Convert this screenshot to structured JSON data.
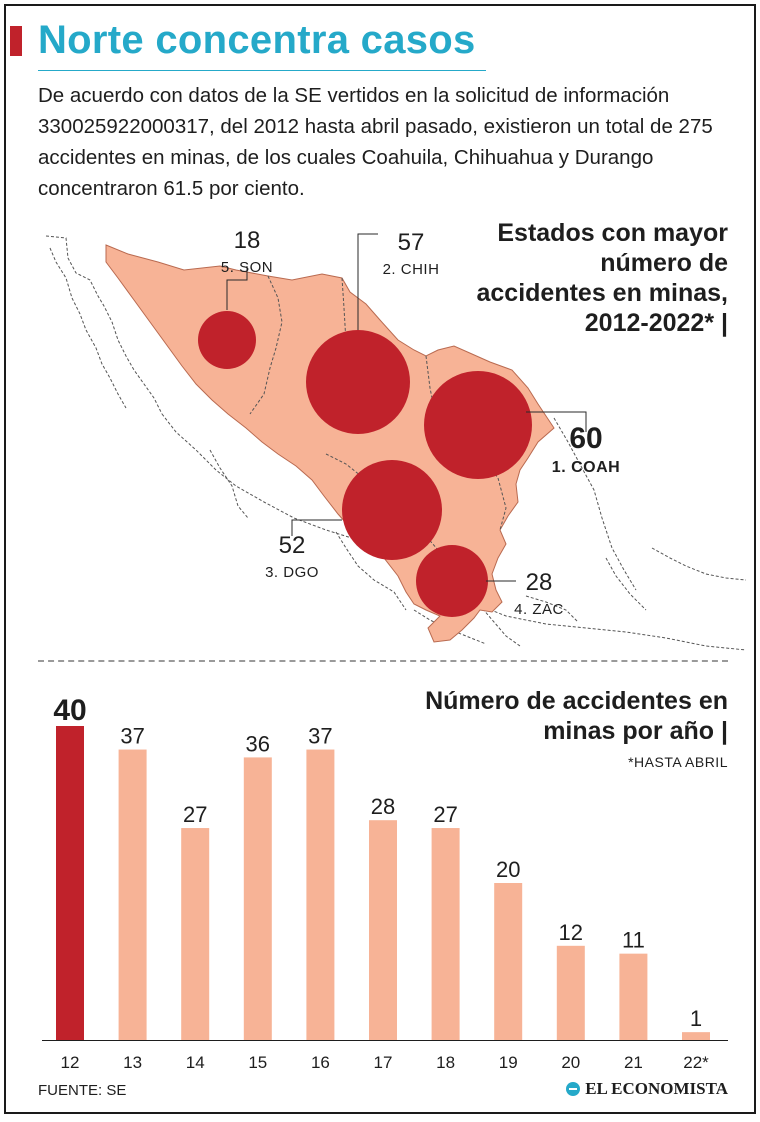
{
  "colors": {
    "accent": "#25a9c9",
    "highlight": "#c0222b",
    "bar": "#f7b396",
    "region": "#f7b396",
    "region_stroke": "#b96a50",
    "circle": "#c0222b"
  },
  "header": {
    "title": "Norte concentra casos",
    "intro": "De acuerdo con datos de la SE vertidos en la solicitud de información 330025922000317, del 2012 hasta abril pasado, existieron un total de 275 accidentes en minas, de los cuales Coahuila, Chihuahua y Durango concentraron 61.5 por ciento."
  },
  "map": {
    "title": "Estados con mayor número de accidentes en minas, 2012-2022* |",
    "states": [
      {
        "rank": "1.",
        "abbr": "COAH",
        "label": "1. COAH",
        "value": 60,
        "highlight": true
      },
      {
        "rank": "2.",
        "abbr": "CHIH",
        "label": "2. CHIH",
        "value": 57,
        "highlight": false
      },
      {
        "rank": "3.",
        "abbr": "DGO",
        "label": "3. DGO",
        "value": 52,
        "highlight": false
      },
      {
        "rank": "4.",
        "abbr": "ZAC",
        "label": "4. ZAC",
        "value": 28,
        "highlight": false
      },
      {
        "rank": "5.",
        "abbr": "SON",
        "label": "5. SON",
        "value": 18,
        "highlight": false
      }
    ]
  },
  "chart_data": {
    "type": "bar",
    "title": "Número de accidentes en minas por año |",
    "note": "*HASTA ABRIL",
    "categories": [
      "12",
      "13",
      "14",
      "15",
      "16",
      "17",
      "18",
      "19",
      "20",
      "21",
      "22*"
    ],
    "values": [
      40,
      37,
      27,
      36,
      37,
      28,
      27,
      20,
      12,
      11,
      1
    ],
    "highlight_index": 0,
    "xlabel": "",
    "ylabel": "",
    "ylim": [
      0,
      40
    ]
  },
  "footer": {
    "source": "FUENTE: SE",
    "brand": "EL ECONOMISTA"
  }
}
